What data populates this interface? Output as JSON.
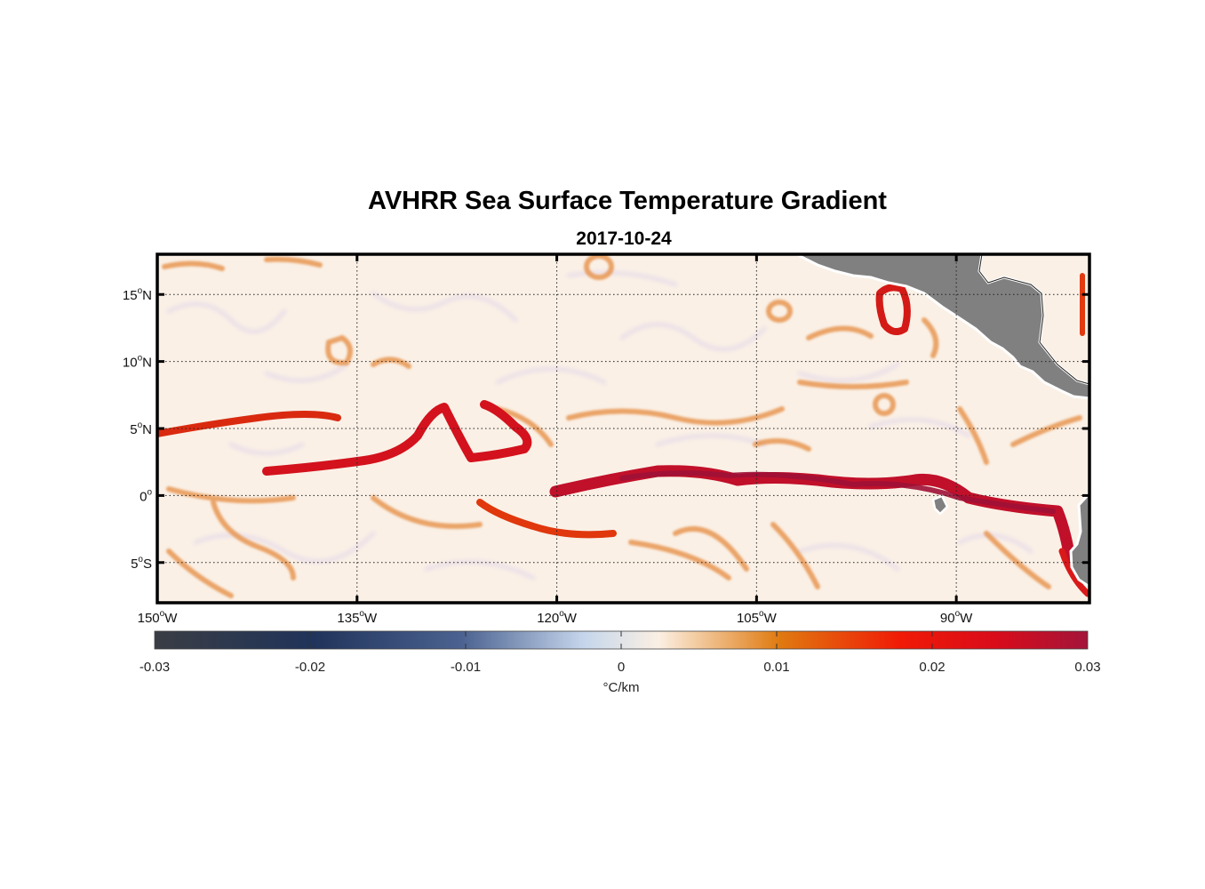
{
  "title": "AVHRR Sea Surface Temperature Gradient",
  "subtitle": "2017-10-24",
  "map": {
    "lon_range": [
      -150,
      -80
    ],
    "lat_range": [
      -8,
      18
    ],
    "lon_ticks": [
      {
        "value": -150,
        "deg": "150",
        "hemi": "W"
      },
      {
        "value": -135,
        "deg": "135",
        "hemi": "W"
      },
      {
        "value": -120,
        "deg": "120",
        "hemi": "W"
      },
      {
        "value": -105,
        "deg": "105",
        "hemi": "W"
      },
      {
        "value": -90,
        "deg": "90",
        "hemi": "W"
      }
    ],
    "lat_ticks": [
      {
        "value": 15,
        "deg": "15",
        "hemi": "N"
      },
      {
        "value": 10,
        "deg": "10",
        "hemi": "N"
      },
      {
        "value": 5,
        "deg": "5",
        "hemi": "N"
      },
      {
        "value": 0,
        "deg": "0",
        "hemi": ""
      },
      {
        "value": -5,
        "deg": "5",
        "hemi": "S"
      }
    ],
    "degree_symbol": "o",
    "grid": "dotted",
    "land_color": "#808080",
    "background_color": "#faf0e6"
  },
  "colorbar": {
    "ticks": [
      "-0.03",
      "-0.02",
      "-0.01",
      "0",
      "0.01",
      "0.02",
      "0.03"
    ],
    "tick_values": [
      -0.03,
      -0.02,
      -0.01,
      0,
      0.01,
      0.02,
      0.03
    ],
    "label": "°C/km",
    "colors": [
      "#3a3d44",
      "#20335a",
      "#4c6391",
      "#c5d6ec",
      "#fbf0e3",
      "#e07a10",
      "#f01a06",
      "#d90c1a",
      "#a3143a"
    ]
  }
}
